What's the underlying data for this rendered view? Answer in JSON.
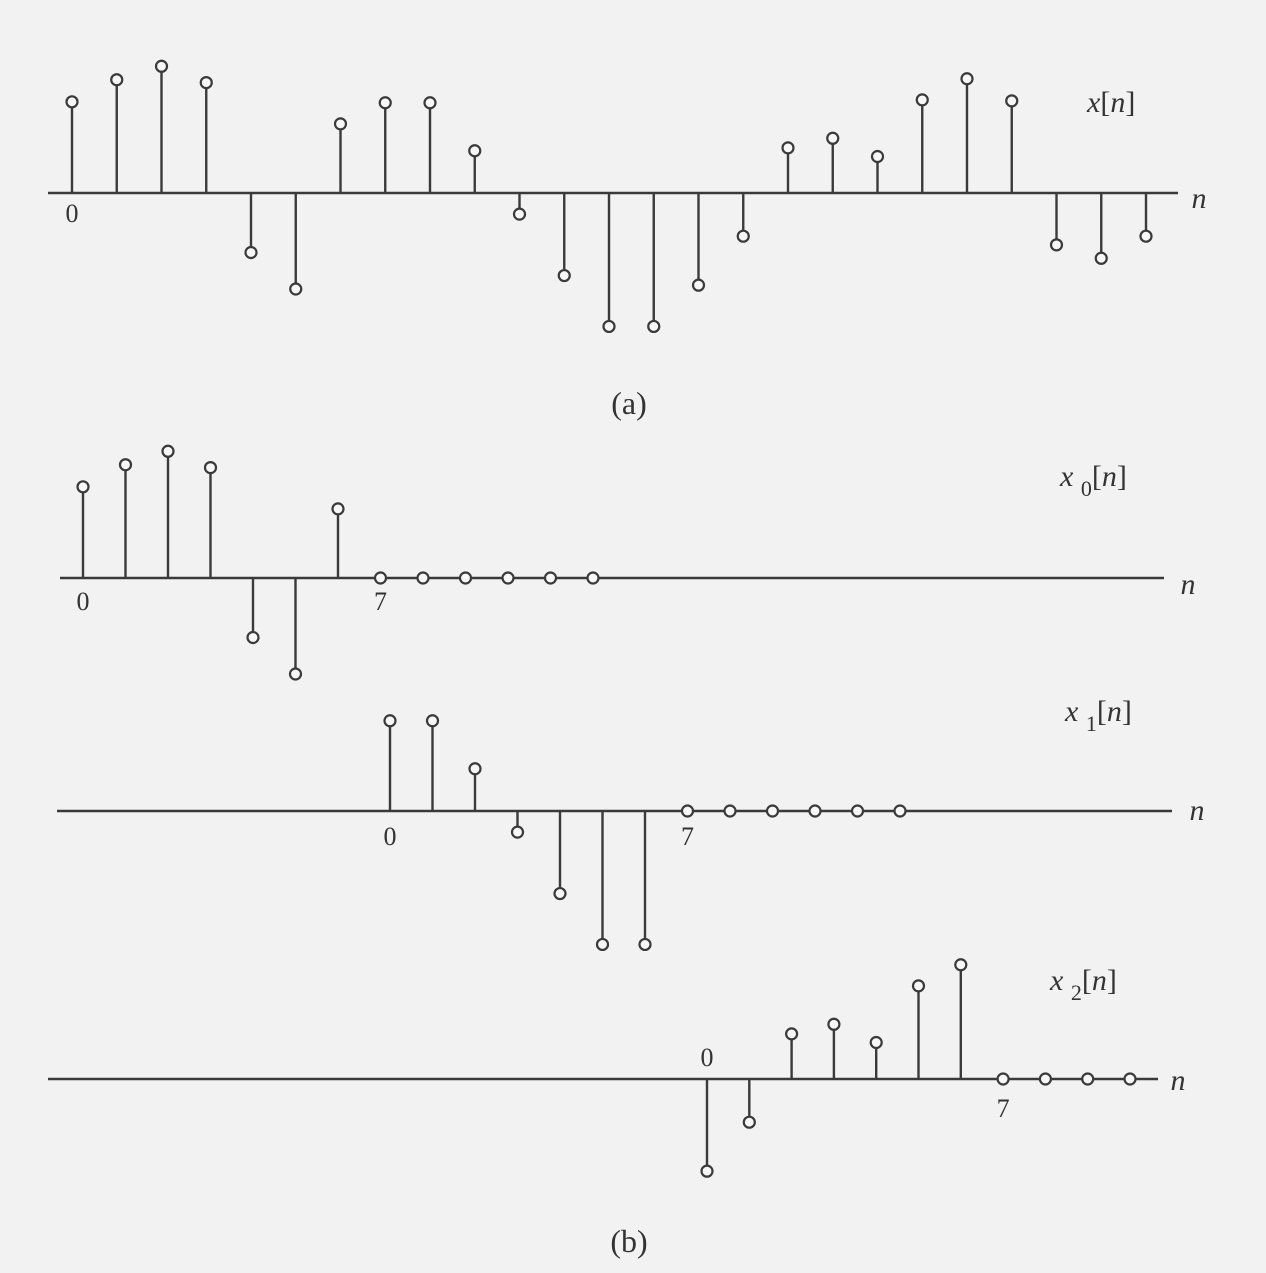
{
  "captions": {
    "a": "(a)",
    "b": "(b)"
  },
  "chart_data": [
    {
      "type": "stem",
      "panel": "a",
      "title": {
        "base": "x",
        "sub": "",
        "arg": "n"
      },
      "xlabel": "n",
      "ylabel": "",
      "x_tick_labels": [
        {
          "n": 0,
          "label": "0"
        }
      ],
      "x": [
        0,
        1,
        2,
        3,
        4,
        5,
        6,
        7,
        8,
        9,
        10,
        11,
        12,
        13,
        14,
        15,
        16,
        17,
        18,
        19,
        20,
        21,
        22,
        23,
        24
      ],
      "values": [
        0.95,
        1.18,
        1.32,
        1.15,
        -0.62,
        -1.0,
        0.72,
        0.94,
        0.94,
        0.44,
        -0.22,
        -0.86,
        -1.39,
        -1.39,
        -0.96,
        -0.45,
        0.47,
        0.57,
        0.38,
        0.97,
        1.19,
        0.96,
        -0.54,
        -0.68,
        -0.45
      ]
    },
    {
      "type": "stem",
      "panel": "b",
      "title": {
        "base": "x",
        "sub": "0",
        "arg": "n"
      },
      "xlabel": "n",
      "ylabel": "",
      "x_tick_labels": [
        {
          "n": 0,
          "label": "0"
        },
        {
          "n": 7,
          "label": "7"
        }
      ],
      "x": [
        0,
        1,
        2,
        3,
        4,
        5,
        6,
        7,
        8,
        9,
        10,
        11,
        12
      ],
      "values": [
        0.95,
        1.18,
        1.32,
        1.15,
        -0.62,
        -1.0,
        0.72,
        0,
        0,
        0,
        0,
        0,
        0
      ]
    },
    {
      "type": "stem",
      "panel": "b",
      "title": {
        "base": "x",
        "sub": "1",
        "arg": "n"
      },
      "xlabel": "n",
      "ylabel": "",
      "x_tick_labels": [
        {
          "n": 0,
          "label": "0"
        },
        {
          "n": 7,
          "label": "7"
        }
      ],
      "x": [
        0,
        1,
        2,
        3,
        4,
        5,
        6,
        7,
        8,
        9,
        10,
        11,
        12
      ],
      "values": [
        0.94,
        0.94,
        0.44,
        -0.22,
        -0.86,
        -1.39,
        -1.39,
        0,
        0,
        0,
        0,
        0,
        0
      ]
    },
    {
      "type": "stem",
      "panel": "b",
      "title": {
        "base": "x",
        "sub": "2",
        "arg": "n"
      },
      "xlabel": "n",
      "ylabel": "",
      "x_tick_labels": [
        {
          "n": 0,
          "label": "0"
        },
        {
          "n": 7,
          "label": "7"
        }
      ],
      "x": [
        0,
        1,
        2,
        3,
        4,
        5,
        6,
        7,
        8,
        9,
        10
      ],
      "values": [
        -0.96,
        -0.45,
        0.47,
        0.57,
        0.38,
        0.97,
        1.19,
        0,
        0,
        0,
        0
      ]
    }
  ]
}
